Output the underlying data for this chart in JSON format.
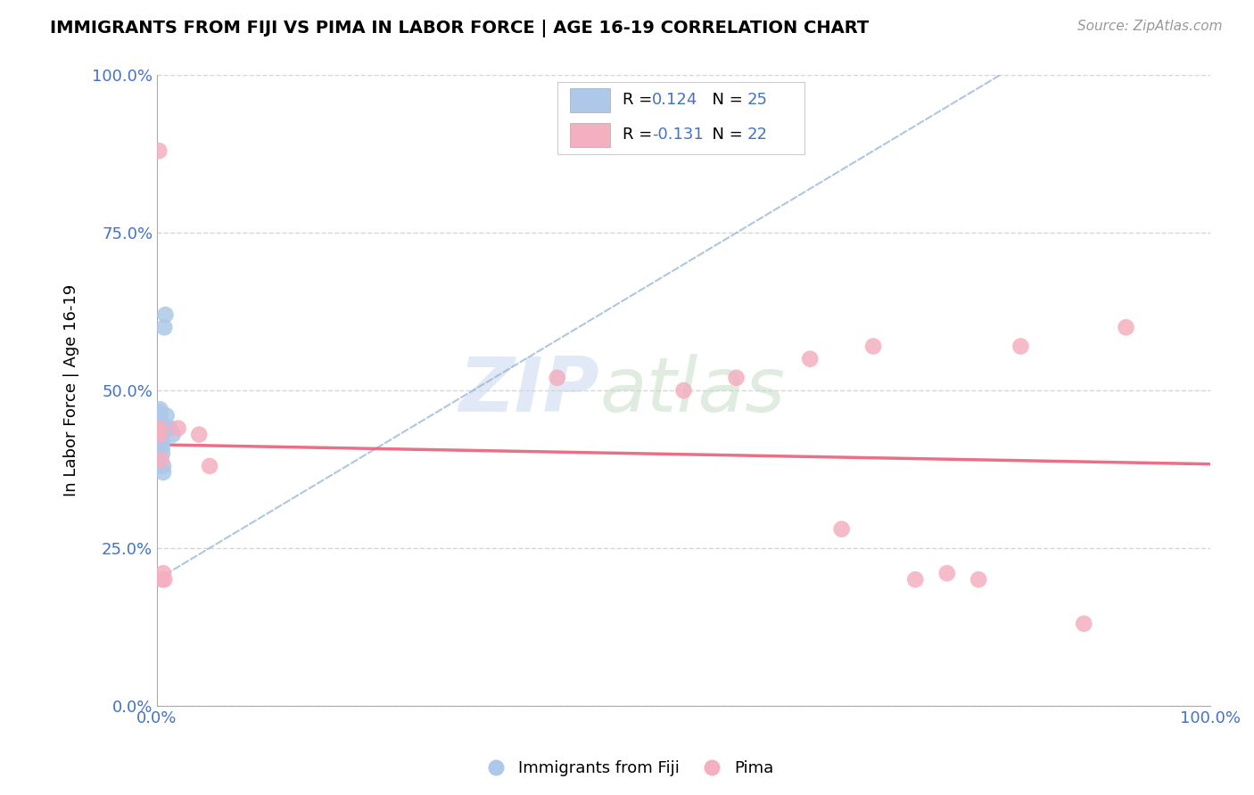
{
  "title": "IMMIGRANTS FROM FIJI VS PIMA IN LABOR FORCE | AGE 16-19 CORRELATION CHART",
  "source": "Source: ZipAtlas.com",
  "ylabel": "In Labor Force | Age 16-19",
  "legend_label_1": "Immigrants from Fiji",
  "legend_label_2": "Pima",
  "r1": 0.124,
  "n1": 25,
  "r2": -0.131,
  "n2": 22,
  "blue_color": "#adc8e8",
  "pink_color": "#f4afc0",
  "blue_line_color": "#8ab0d8",
  "pink_line_color": "#e8607a",
  "xlim": [
    0.0,
    1.0
  ],
  "ylim": [
    0.0,
    1.0
  ],
  "blue_x": [
    0.002,
    0.001,
    0.001,
    0.002,
    0.002,
    0.003,
    0.003,
    0.003,
    0.003,
    0.003,
    0.004,
    0.004,
    0.004,
    0.004,
    0.005,
    0.005,
    0.005,
    0.006,
    0.006,
    0.007,
    0.008,
    0.009,
    0.01,
    0.012,
    0.015
  ],
  "blue_y": [
    0.435,
    0.44,
    0.455,
    0.46,
    0.465,
    0.44,
    0.45,
    0.455,
    0.46,
    0.47,
    0.42,
    0.43,
    0.445,
    0.45,
    0.4,
    0.41,
    0.42,
    0.38,
    0.37,
    0.6,
    0.62,
    0.46,
    0.44,
    0.44,
    0.43
  ],
  "pink_x": [
    0.002,
    0.003,
    0.003,
    0.004,
    0.005,
    0.006,
    0.007,
    0.02,
    0.04,
    0.05,
    0.38,
    0.5,
    0.55,
    0.62,
    0.65,
    0.68,
    0.72,
    0.75,
    0.78,
    0.82,
    0.88,
    0.92
  ],
  "pink_y": [
    0.88,
    0.44,
    0.43,
    0.39,
    0.2,
    0.21,
    0.2,
    0.44,
    0.43,
    0.38,
    0.52,
    0.5,
    0.52,
    0.55,
    0.28,
    0.57,
    0.2,
    0.21,
    0.2,
    0.57,
    0.13,
    0.6
  ]
}
